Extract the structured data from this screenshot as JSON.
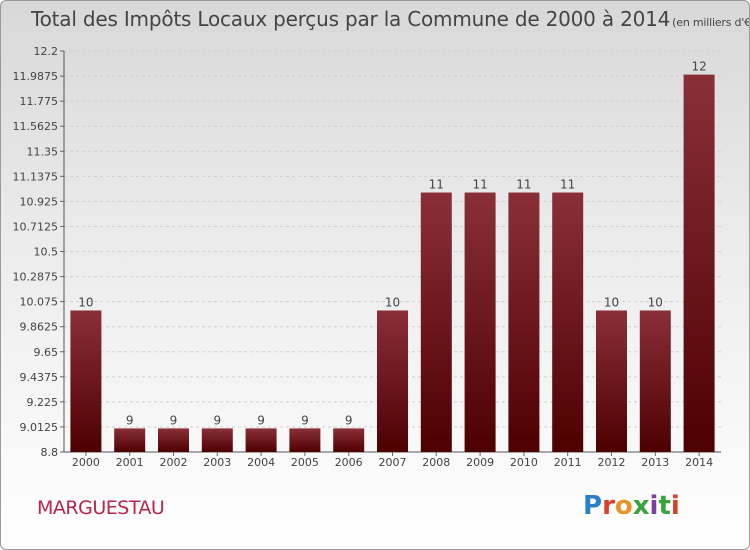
{
  "title": "Total des Impôts Locaux perçus par la Commune de 2000 à 2014",
  "title_unit": "(en milliers d'€)",
  "commune": "MARGUESTAU",
  "logo_letters": [
    "P",
    "r",
    "o",
    "x",
    "i",
    "t",
    "i"
  ],
  "colors": {
    "bar_top": "#8a2f38",
    "bar_bottom": "#4d0000",
    "accent": "#b8254f"
  },
  "chart_data": {
    "type": "bar",
    "title": "Total des Impôts Locaux perçus par la Commune de 2000 à 2014",
    "categories": [
      "2000",
      "2001",
      "2002",
      "2003",
      "2004",
      "2005",
      "2006",
      "2007",
      "2008",
      "2009",
      "2010",
      "2011",
      "2012",
      "2013",
      "2014"
    ],
    "values": [
      10,
      9,
      9,
      9,
      9,
      9,
      9,
      10,
      11,
      11,
      11,
      11,
      10,
      10,
      12
    ],
    "ylim": [
      8.8,
      12.2
    ],
    "yticks": [
      "8.8",
      "9.0125",
      "9.225",
      "9.4375",
      "9.65",
      "9.8625",
      "10.075",
      "10.2875",
      "10.5",
      "10.7125",
      "10.925",
      "11.1375",
      "11.35",
      "11.5625",
      "11.775",
      "11.9875",
      "12.2"
    ],
    "grid": true
  }
}
